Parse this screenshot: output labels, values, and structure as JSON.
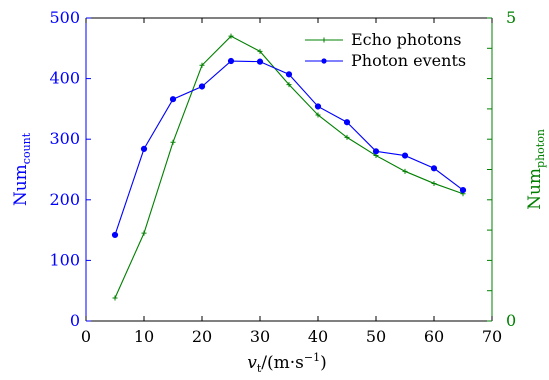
{
  "chart_data": {
    "type": "line",
    "x": [
      5,
      10,
      15,
      20,
      25,
      30,
      35,
      40,
      45,
      50,
      55,
      60,
      65
    ],
    "xlabel": {
      "main": "v",
      "sub": "t",
      "rest": "/(m·s",
      "sup": "−1",
      "close": ")"
    },
    "xlim": [
      0,
      70
    ],
    "xticks": [
      0,
      10,
      20,
      30,
      40,
      50,
      60,
      70
    ],
    "y_left": {
      "label": {
        "main": "Num",
        "sub": "count"
      },
      "lim": [
        0,
        500
      ],
      "ticks": [
        0,
        100,
        200,
        300,
        400,
        500
      ],
      "color": "#0000ff"
    },
    "y_right": {
      "label": {
        "main": "Num",
        "sub": "photon"
      },
      "lim": [
        0,
        5
      ],
      "ticks": [
        0,
        5
      ],
      "color": "#008000"
    },
    "series": [
      {
        "name": "Echo photons",
        "axis": "right",
        "color": "#008000",
        "marker": "plus",
        "values": [
          0.38,
          1.45,
          2.95,
          4.22,
          4.7,
          4.45,
          3.9,
          3.4,
          3.03,
          2.73,
          2.47,
          2.27,
          2.1
        ]
      },
      {
        "name": "Photon events",
        "axis": "left",
        "color": "#0000ff",
        "marker": "circle",
        "values": [
          142,
          284,
          366,
          387,
          429,
          428,
          407,
          354,
          328,
          280,
          273,
          252,
          216
        ]
      }
    ],
    "legend": {
      "position": "top-right"
    }
  }
}
